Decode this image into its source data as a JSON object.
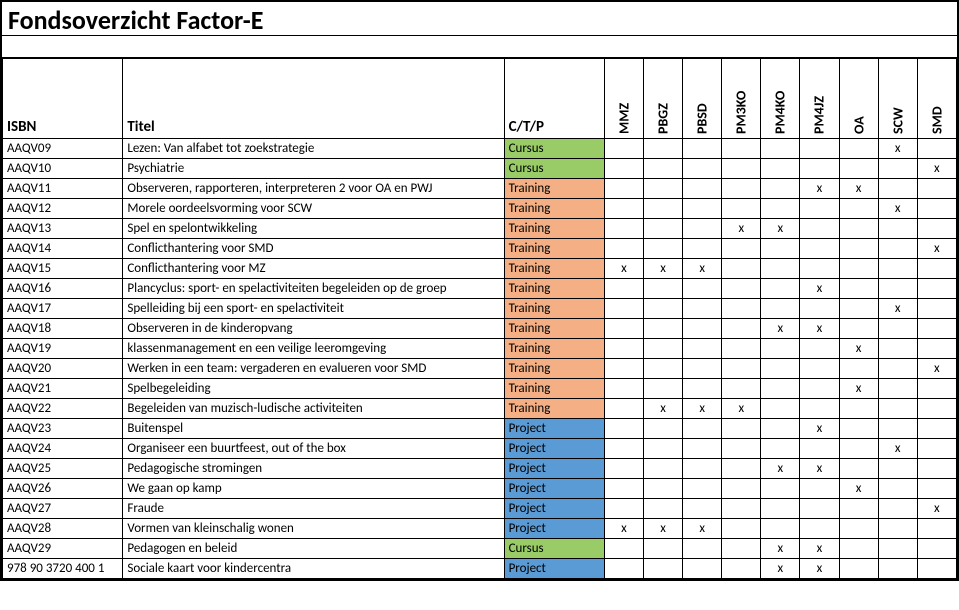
{
  "title": "Fondsoverzicht Factor-E",
  "headers": {
    "isbn": "ISBN",
    "titel": "Titel",
    "ctp": "C/T/P",
    "flags": [
      "MMZ",
      "PBGZ",
      "PBSD",
      "PM3KO",
      "PM4KO",
      "PM4JZ",
      "OA",
      "SCW",
      "SMD"
    ]
  },
  "ctp_colors": {
    "Cursus": "#99cc66",
    "Training": "#f4b084",
    "Project": "#5b9bd5"
  },
  "rows": [
    {
      "isbn": "AAQV09",
      "titel": "Lezen: Van alfabet tot zoekstrategie",
      "ctp": "Cursus",
      "flags": [
        "",
        "",
        "",
        "",
        "",
        "",
        "",
        "x",
        ""
      ]
    },
    {
      "isbn": "AAQV10",
      "titel": "Psychiatrie",
      "ctp": "Cursus",
      "flags": [
        "",
        "",
        "",
        "",
        "",
        "",
        "",
        "",
        "x"
      ]
    },
    {
      "isbn": "AAQV11",
      "titel": "Observeren, rapporteren, interpreteren 2 voor OA en PWJ",
      "ctp": "Training",
      "flags": [
        "",
        "",
        "",
        "",
        "",
        "x",
        "x",
        "",
        ""
      ]
    },
    {
      "isbn": "AAQV12",
      "titel": "Morele oordeelsvorming voor SCW",
      "ctp": "Training",
      "flags": [
        "",
        "",
        "",
        "",
        "",
        "",
        "",
        "x",
        ""
      ]
    },
    {
      "isbn": "AAQV13",
      "titel": "Spel en spelontwikkeling",
      "ctp": "Training",
      "flags": [
        "",
        "",
        "",
        "x",
        "x",
        "",
        "",
        "",
        ""
      ]
    },
    {
      "isbn": "AAQV14",
      "titel": "Conflicthantering voor SMD",
      "ctp": "Training",
      "flags": [
        "",
        "",
        "",
        "",
        "",
        "",
        "",
        "",
        "x"
      ]
    },
    {
      "isbn": "AAQV15",
      "titel": "Conflicthantering voor MZ",
      "ctp": "Training",
      "flags": [
        "x",
        "x",
        "x",
        "",
        "",
        "",
        "",
        "",
        ""
      ]
    },
    {
      "isbn": "AAQV16",
      "titel": "Plancyclus: sport- en spelactiviteiten begeleiden op de groep",
      "ctp": "Training",
      "flags": [
        "",
        "",
        "",
        "",
        "",
        "x",
        "",
        "",
        ""
      ]
    },
    {
      "isbn": "AAQV17",
      "titel": "Spelleiding bij een sport- en spelactiviteit",
      "ctp": "Training",
      "flags": [
        "",
        "",
        "",
        "",
        "",
        "",
        "",
        "x",
        ""
      ]
    },
    {
      "isbn": "AAQV18",
      "titel": "Observeren in de kinderopvang",
      "ctp": "Training",
      "flags": [
        "",
        "",
        "",
        "",
        "x",
        "x",
        "",
        "",
        ""
      ]
    },
    {
      "isbn": "AAQV19",
      "titel": "klassenmanagement en een veilige leeromgeving",
      "ctp": "Training",
      "flags": [
        "",
        "",
        "",
        "",
        "",
        "",
        "x",
        "",
        ""
      ]
    },
    {
      "isbn": "AAQV20",
      "titel": "Werken in een team: vergaderen en evalueren voor SMD",
      "ctp": "Training",
      "flags": [
        "",
        "",
        "",
        "",
        "",
        "",
        "",
        "",
        "x"
      ]
    },
    {
      "isbn": "AAQV21",
      "titel": "Spelbegeleiding",
      "ctp": "Training",
      "flags": [
        "",
        "",
        "",
        "",
        "",
        "",
        "x",
        "",
        ""
      ]
    },
    {
      "isbn": "AAQV22",
      "titel": "Begeleiden van muzisch-ludische activiteiten",
      "ctp": "Training",
      "flags": [
        "",
        "x",
        "x",
        "x",
        "",
        "",
        "",
        "",
        ""
      ]
    },
    {
      "isbn": "AAQV23",
      "titel": "Buitenspel",
      "ctp": "Project",
      "flags": [
        "",
        "",
        "",
        "",
        "",
        "x",
        "",
        "",
        ""
      ]
    },
    {
      "isbn": "AAQV24",
      "titel": "Organiseer een buurtfeest, out of the box",
      "ctp": "Project",
      "flags": [
        "",
        "",
        "",
        "",
        "",
        "",
        "",
        "x",
        ""
      ]
    },
    {
      "isbn": "AAQV25",
      "titel": "Pedagogische stromingen",
      "ctp": "Project",
      "flags": [
        "",
        "",
        "",
        "",
        "x",
        "x",
        "",
        "",
        ""
      ]
    },
    {
      "isbn": "AAQV26",
      "titel": "We gaan op kamp",
      "ctp": "Project",
      "flags": [
        "",
        "",
        "",
        "",
        "",
        "",
        "x",
        "",
        ""
      ]
    },
    {
      "isbn": "AAQV27",
      "titel": "Fraude",
      "ctp": "Project",
      "flags": [
        "",
        "",
        "",
        "",
        "",
        "",
        "",
        "",
        "x"
      ]
    },
    {
      "isbn": "AAQV28",
      "titel": "Vormen van kleinschalig wonen",
      "ctp": "Project",
      "flags": [
        "x",
        "x",
        "x",
        "",
        "",
        "",
        "",
        "",
        ""
      ]
    },
    {
      "isbn": "AAQV29",
      "titel": "Pedagogen en beleid",
      "ctp": "Cursus",
      "flags": [
        "",
        "",
        "",
        "",
        "x",
        "x",
        "",
        "",
        ""
      ]
    },
    {
      "isbn": "978 90 3720 400 1",
      "titel": "Sociale kaart voor kindercentra",
      "ctp": "Project",
      "flags": [
        "",
        "",
        "",
        "",
        "x",
        "x",
        "",
        "",
        ""
      ]
    }
  ]
}
